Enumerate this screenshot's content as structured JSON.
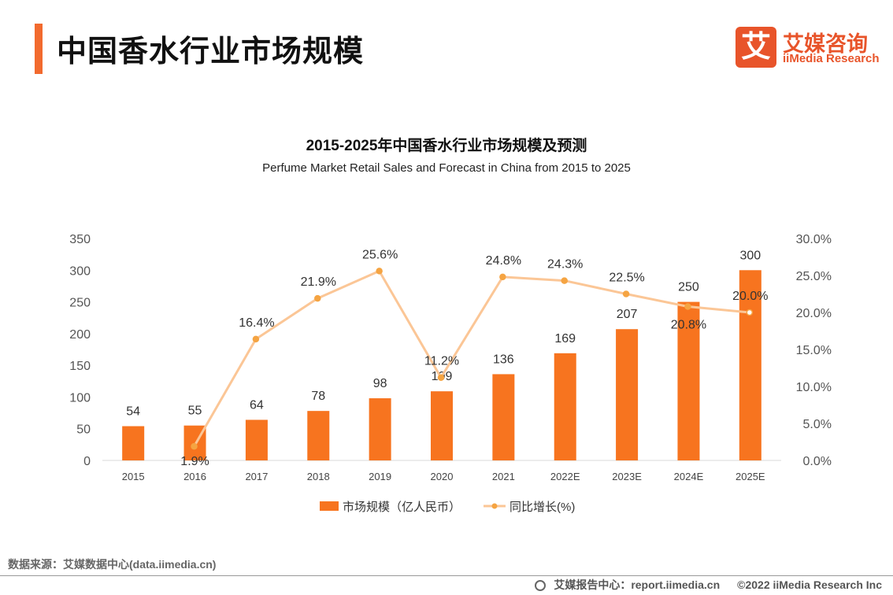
{
  "header": {
    "title": "中国香水行业市场规模",
    "logo_badge": "艾",
    "logo_cn": "艾媒咨询",
    "logo_en": "iiMedia Research"
  },
  "chart_data": {
    "type": "bar+line",
    "title": "2015-2025年中国香水行业市场规模及预测",
    "subtitle": "Perfume Market Retail Sales and Forecast in China from 2015 to 2025",
    "categories": [
      "2015",
      "2016",
      "2017",
      "2018",
      "2019",
      "2020",
      "2021",
      "2022E",
      "2023E",
      "2024E",
      "2025E"
    ],
    "series": [
      {
        "name": "市场规模（亿人民币）",
        "type": "bar",
        "axis": "left",
        "values": [
          54,
          55,
          64,
          78,
          98,
          109,
          136,
          169,
          207,
          250,
          300
        ],
        "labels": [
          "54",
          "55",
          "64",
          "78",
          "98",
          "109",
          "136",
          "169",
          "207",
          "250",
          "300"
        ]
      },
      {
        "name": "同比增长(%)",
        "type": "line",
        "axis": "right",
        "values": [
          null,
          1.9,
          16.4,
          21.9,
          25.6,
          11.2,
          24.8,
          24.3,
          22.5,
          20.8,
          20.0
        ],
        "labels": [
          "",
          "1.9%",
          "16.4%",
          "21.9%",
          "25.6%",
          "11.2%",
          "24.8%",
          "24.3%",
          "22.5%",
          "20.8%",
          "20.0%"
        ]
      }
    ],
    "left_axis": {
      "ylim": [
        0,
        350
      ],
      "ticks": [
        "0",
        "50",
        "100",
        "150",
        "200",
        "250",
        "300",
        "350"
      ]
    },
    "right_axis": {
      "ylim": [
        0,
        30
      ],
      "ticks": [
        "0.0%",
        "5.0%",
        "10.0%",
        "15.0%",
        "20.0%",
        "25.0%",
        "30.0%"
      ]
    },
    "grid": false,
    "legend_position": "bottom",
    "colors": {
      "bar": "#f7741f",
      "line": "#fbc696",
      "marker": "#f5a442"
    }
  },
  "footer": {
    "source": "数据来源：艾媒数据中心(data.iimedia.cn)",
    "report_center": "艾媒报告中心：report.iimedia.cn",
    "copyright": "©2022  iiMedia Research  Inc"
  }
}
